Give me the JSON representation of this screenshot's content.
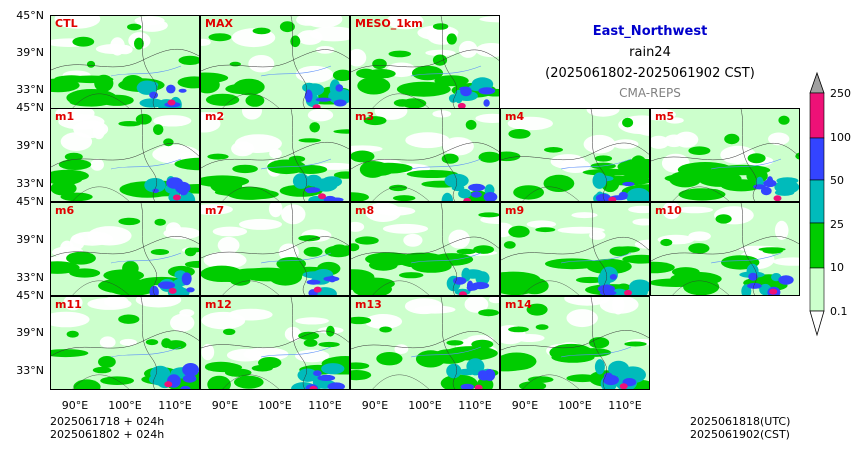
{
  "header": {
    "region": "East_Northwest",
    "variable": "rain24",
    "period": "(2025061802-2025061902 CST)",
    "source": "CMA-REPS"
  },
  "colors": {
    "region_title": "#0000cc",
    "panel_label": "#e00000",
    "source_text": "#808080",
    "levels": [
      "#ccffcc",
      "#00cc00",
      "#00bbbb",
      "#3344ff",
      "#ee1177",
      "#a0a0a0"
    ]
  },
  "panels": [
    {
      "label": "CTL"
    },
    {
      "label": "MAX"
    },
    {
      "label": "MESO_1km"
    },
    {
      "label": "m1"
    },
    {
      "label": "m2"
    },
    {
      "label": "m3"
    },
    {
      "label": "m4"
    },
    {
      "label": "m5"
    },
    {
      "label": "m6"
    },
    {
      "label": "m7"
    },
    {
      "label": "m8"
    },
    {
      "label": "m9"
    },
    {
      "label": "m10"
    },
    {
      "label": "m11"
    },
    {
      "label": "m12"
    },
    {
      "label": "m13"
    },
    {
      "label": "m14"
    }
  ],
  "axes": {
    "lat_ticks": [
      "45°N",
      "39°N",
      "33°N"
    ],
    "lon_ticks": [
      "90°E",
      "100°E",
      "110°E"
    ]
  },
  "colorbar": {
    "levels": [
      "0.1",
      "10",
      "25",
      "50",
      "100",
      "250"
    ]
  },
  "footer": {
    "init_line1": "2025061718  +  024h",
    "init_line2": "2025061802  +  024h",
    "valid_line1": "2025061818(UTC)",
    "valid_line2": "2025061902(CST)"
  }
}
